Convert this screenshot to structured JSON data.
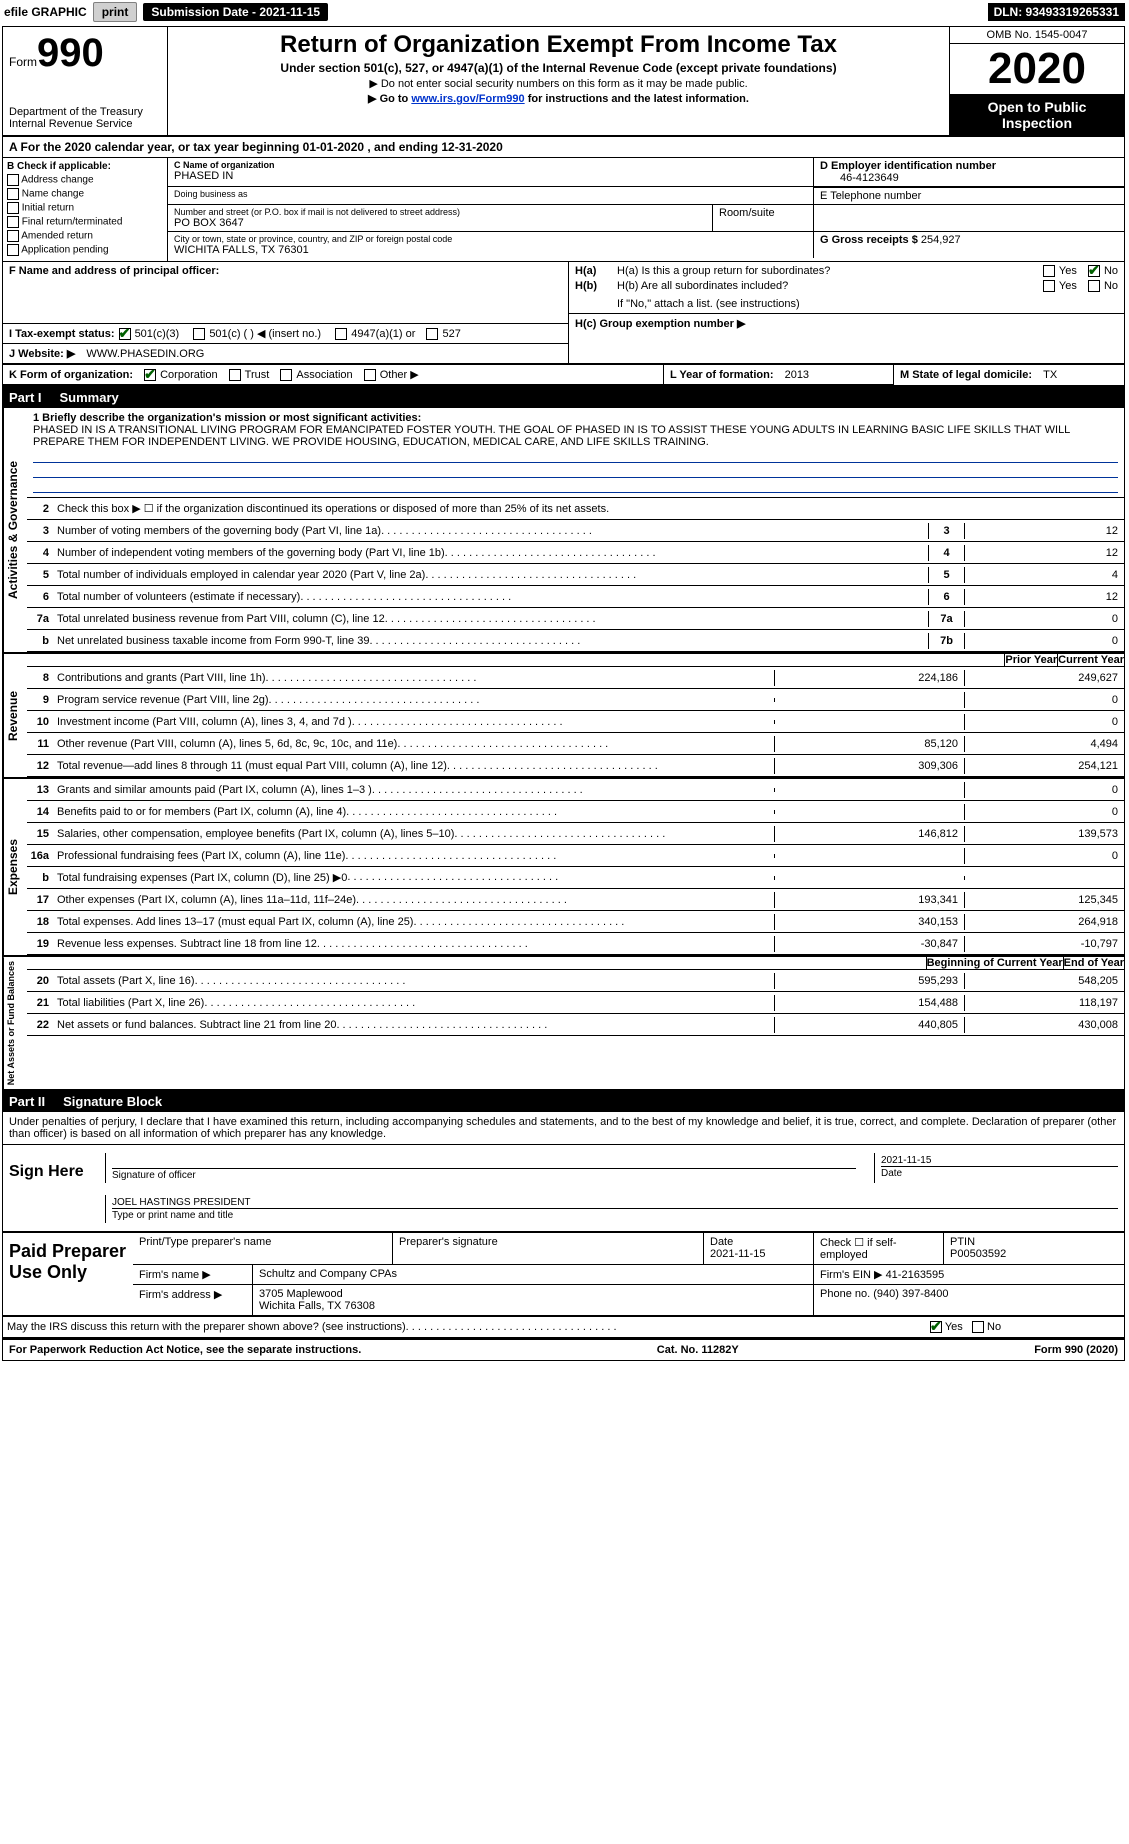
{
  "topbar": {
    "efile": "efile GRAPHIC",
    "print": "print",
    "submission": "Submission Date - 2021-11-15",
    "dln": "DLN: 93493319265331"
  },
  "header": {
    "form_prefix": "Form",
    "form_number": "990",
    "dept": "Department of the Treasury\nInternal Revenue Service",
    "title": "Return of Organization Exempt From Income Tax",
    "subtitle": "Under section 501(c), 527, or 4947(a)(1) of the Internal Revenue Code (except private foundations)",
    "note1": "▶ Do not enter social security numbers on this form as it may be made public.",
    "note2_pre": "▶ Go to ",
    "note2_link": "www.irs.gov/Form990",
    "note2_post": " for instructions and the latest information.",
    "omb": "OMB No. 1545-0047",
    "year": "2020",
    "otp": "Open to Public Inspection"
  },
  "row_a": "A For the 2020 calendar year, or tax year beginning 01-01-2020    , and ending 12-31-2020",
  "section_b": {
    "label": "B Check if applicable:",
    "items": [
      "Address change",
      "Name change",
      "Initial return",
      "Final return/terminated",
      "Amended return",
      "Application pending"
    ]
  },
  "section_c": {
    "name_lbl": "C Name of organization",
    "name": "PHASED IN",
    "dba_lbl": "Doing business as",
    "dba": "",
    "addr_lbl": "Number and street (or P.O. box if mail is not delivered to street address)",
    "room_lbl": "Room/suite",
    "addr": "PO BOX 3647",
    "city_lbl": "City or town, state or province, country, and ZIP or foreign postal code",
    "city": "WICHITA FALLS, TX  76301"
  },
  "section_d": {
    "lbl": "D Employer identification number",
    "val": "46-4123649"
  },
  "section_e": {
    "lbl": "E Telephone number",
    "val": ""
  },
  "section_g": {
    "lbl": "G Gross receipts $",
    "val": "254,927"
  },
  "section_f": {
    "lbl": "F  Name and address of principal officer:"
  },
  "section_h": {
    "a_lbl": "H(a)  Is this a group return for subordinates?",
    "a_yes": "Yes",
    "a_no": "No",
    "a_no_checked": true,
    "b_lbl": "H(b)  Are all subordinates included?",
    "b_yes": "Yes",
    "b_no": "No",
    "b_note": "If \"No,\" attach a list. (see instructions)",
    "c_lbl": "H(c)  Group exemption number ▶"
  },
  "section_i": {
    "lbl": "I   Tax-exempt status:",
    "opt_501c3": "501(c)(3)",
    "opt_501c": "501(c) (  ) ◀ (insert no.)",
    "opt_4947": "4947(a)(1) or",
    "opt_527": "527",
    "checked_501c3": true
  },
  "section_j": {
    "lbl": "J   Website: ▶",
    "val": "WWW.PHASEDIN.ORG"
  },
  "section_k": {
    "lbl": "K Form of organization:",
    "corp": "Corporation",
    "trust": "Trust",
    "assoc": "Association",
    "other": "Other ▶",
    "corp_checked": true
  },
  "section_l": {
    "lbl": "L Year of formation:",
    "val": "2013"
  },
  "section_m": {
    "lbl": "M State of legal domicile:",
    "val": "TX"
  },
  "part1": {
    "title_pre": "Part I",
    "title": "Summary",
    "line1_lbl": "1  Briefly describe the organization's mission or most significant activities:",
    "mission": "PHASED IN IS A TRANSITIONAL LIVING PROGRAM FOR EMANCIPATED FOSTER YOUTH. THE GOAL OF PHASED IN IS TO ASSIST THESE YOUNG ADULTS IN LEARNING BASIC LIFE SKILLS THAT WILL PREPARE THEM FOR INDEPENDENT LIVING. WE PROVIDE HOUSING, EDUCATION, MEDICAL CARE, AND LIFE SKILLS TRAINING.",
    "line2": "Check this box ▶ ☐ if the organization discontinued its operations or disposed of more than 25% of its net assets.",
    "gov_rows": [
      {
        "n": "3",
        "txt": "Number of voting members of the governing body (Part VI, line 1a)",
        "box": "3",
        "val": "12"
      },
      {
        "n": "4",
        "txt": "Number of independent voting members of the governing body (Part VI, line 1b)",
        "box": "4",
        "val": "12"
      },
      {
        "n": "5",
        "txt": "Total number of individuals employed in calendar year 2020 (Part V, line 2a)",
        "box": "5",
        "val": "4"
      },
      {
        "n": "6",
        "txt": "Total number of volunteers (estimate if necessary)",
        "box": "6",
        "val": "12"
      },
      {
        "n": "7a",
        "txt": "Total unrelated business revenue from Part VIII, column (C), line 12",
        "box": "7a",
        "val": "0"
      },
      {
        "n": "b",
        "txt": "Net unrelated business taxable income from Form 990-T, line 39",
        "box": "7b",
        "val": "0"
      }
    ],
    "prior_hdr": "Prior Year",
    "curr_hdr": "Current Year",
    "rev_rows": [
      {
        "n": "8",
        "txt": "Contributions and grants (Part VIII, line 1h)",
        "prior": "224,186",
        "curr": "249,627"
      },
      {
        "n": "9",
        "txt": "Program service revenue (Part VIII, line 2g)",
        "prior": "",
        "curr": "0"
      },
      {
        "n": "10",
        "txt": "Investment income (Part VIII, column (A), lines 3, 4, and 7d )",
        "prior": "",
        "curr": "0"
      },
      {
        "n": "11",
        "txt": "Other revenue (Part VIII, column (A), lines 5, 6d, 8c, 9c, 10c, and 11e)",
        "prior": "85,120",
        "curr": "4,494"
      },
      {
        "n": "12",
        "txt": "Total revenue—add lines 8 through 11 (must equal Part VIII, column (A), line 12)",
        "prior": "309,306",
        "curr": "254,121"
      }
    ],
    "exp_rows": [
      {
        "n": "13",
        "txt": "Grants and similar amounts paid (Part IX, column (A), lines 1–3 )",
        "prior": "",
        "curr": "0"
      },
      {
        "n": "14",
        "txt": "Benefits paid to or for members (Part IX, column (A), line 4)",
        "prior": "",
        "curr": "0"
      },
      {
        "n": "15",
        "txt": "Salaries, other compensation, employee benefits (Part IX, column (A), lines 5–10)",
        "prior": "146,812",
        "curr": "139,573"
      },
      {
        "n": "16a",
        "txt": "Professional fundraising fees (Part IX, column (A), line 11e)",
        "prior": "",
        "curr": "0"
      },
      {
        "n": "b",
        "txt": "Total fundraising expenses (Part IX, column (D), line 25) ▶0",
        "prior": "",
        "curr": ""
      },
      {
        "n": "17",
        "txt": "Other expenses (Part IX, column (A), lines 11a–11d, 11f–24e)",
        "prior": "193,341",
        "curr": "125,345"
      },
      {
        "n": "18",
        "txt": "Total expenses. Add lines 13–17 (must equal Part IX, column (A), line 25)",
        "prior": "340,153",
        "curr": "264,918"
      },
      {
        "n": "19",
        "txt": "Revenue less expenses. Subtract line 18 from line 12",
        "prior": "-30,847",
        "curr": "-10,797"
      }
    ],
    "bal_hdr_l": "Beginning of Current Year",
    "bal_hdr_r": "End of Year",
    "bal_rows": [
      {
        "n": "20",
        "txt": "Total assets (Part X, line 16)",
        "prior": "595,293",
        "curr": "548,205"
      },
      {
        "n": "21",
        "txt": "Total liabilities (Part X, line 26)",
        "prior": "154,488",
        "curr": "118,197"
      },
      {
        "n": "22",
        "txt": "Net assets or fund balances. Subtract line 21 from line 20",
        "prior": "440,805",
        "curr": "430,008"
      }
    ],
    "side_ag": "Activities & Governance",
    "side_rev": "Revenue",
    "side_exp": "Expenses",
    "side_na": "Net Assets or Fund Balances"
  },
  "part2": {
    "title_pre": "Part II",
    "title": "Signature Block",
    "decl": "Under penalties of perjury, I declare that I have examined this return, including accompanying schedules and statements, and to the best of my knowledge and belief, it is true, correct, and complete. Declaration of preparer (other than officer) is based on all information of which preparer has any knowledge."
  },
  "sign": {
    "here": "Sign Here",
    "sig_lbl": "Signature of officer",
    "date": "2021-11-15",
    "date_lbl": "Date",
    "name": "JOEL HASTINGS  PRESIDENT",
    "name_lbl": "Type or print name and title"
  },
  "paid": {
    "title": "Paid Preparer Use Only",
    "cols": [
      "Print/Type preparer's name",
      "Preparer's signature",
      "Date",
      "Check ☐ if self-employed",
      "PTIN"
    ],
    "date": "2021-11-15",
    "ptin": "P00503592",
    "firm_lbl": "Firm's name    ▶",
    "firm": "Schultz and Company CPAs",
    "ein_lbl": "Firm's EIN ▶",
    "ein": "41-2163595",
    "addr_lbl": "Firm's address ▶",
    "addr1": "3705 Maplewood",
    "addr2": "Wichita Falls, TX  76308",
    "phone_lbl": "Phone no.",
    "phone": "(940) 397-8400"
  },
  "may_discuss": {
    "txt": "May the IRS discuss this return with the preparer shown above? (see instructions)",
    "yes": "Yes",
    "no": "No",
    "yes_checked": true
  },
  "footer": {
    "left": "For Paperwork Reduction Act Notice, see the separate instructions.",
    "mid": "Cat. No. 11282Y",
    "right_pre": "Form ",
    "right_form": "990",
    "right_post": " (2020)"
  },
  "colors": {
    "link": "#0033cc",
    "checkmark": "#006000",
    "rule": "#003399"
  }
}
